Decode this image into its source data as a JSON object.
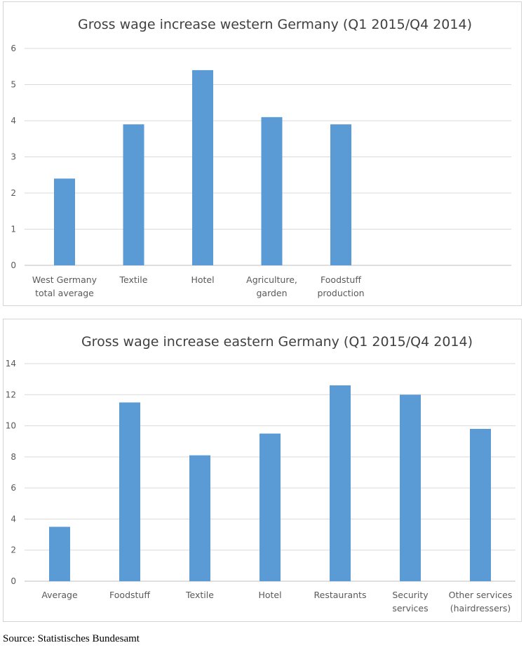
{
  "source_note": "Source: Statistisches Bundesamt",
  "colors": {
    "bar": "#5B9BD5",
    "gridline": "#d9d9d9",
    "text": "#595959",
    "title": "#404040"
  },
  "chart_data": [
    {
      "type": "bar",
      "title": "Gross wage increase western Germany (Q1 2015/Q4 2014)",
      "xlabel": "",
      "ylabel": "",
      "ylim": [
        0,
        6
      ],
      "yticks": [
        0,
        1,
        2,
        3,
        4,
        5,
        6
      ],
      "grid": true,
      "categories": [
        [
          "West Germany",
          "total average"
        ],
        [
          "Textile"
        ],
        [
          "Hotel"
        ],
        [
          "Agriculture,",
          "garden"
        ],
        [
          "Foodstuff",
          "production"
        ]
      ],
      "values": [
        2.4,
        3.9,
        5.4,
        4.1,
        3.9
      ]
    },
    {
      "type": "bar",
      "title": "Gross wage increase eastern Germany (Q1 2015/Q4 2014)",
      "xlabel": "",
      "ylabel": "",
      "ylim": [
        0,
        14
      ],
      "yticks": [
        0,
        2,
        4,
        6,
        8,
        10,
        12,
        14
      ],
      "grid": true,
      "categories": [
        [
          "Average"
        ],
        [
          "Foodstuff"
        ],
        [
          "Textile"
        ],
        [
          "Hotel"
        ],
        [
          "Restaurants"
        ],
        [
          "Security",
          "services"
        ],
        [
          "Other services",
          "(hairdressers)"
        ]
      ],
      "values": [
        3.5,
        11.5,
        8.1,
        9.5,
        12.6,
        12.0,
        9.8
      ]
    }
  ]
}
